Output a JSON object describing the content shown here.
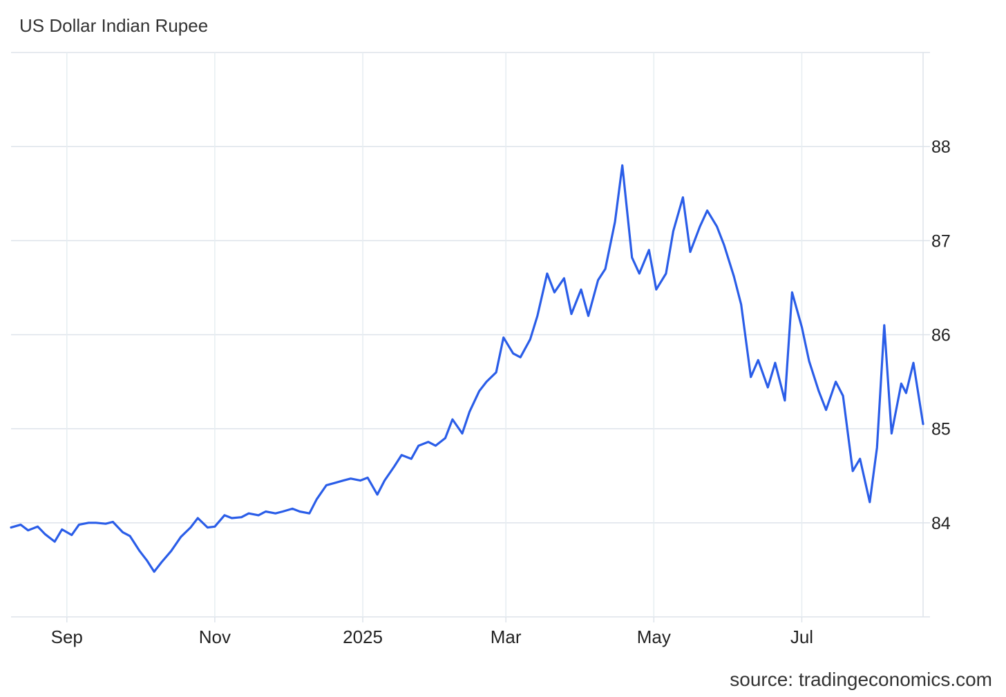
{
  "title": "US Dollar Indian Rupee",
  "source": "source: tradingeconomics.com",
  "chart_data": {
    "type": "line",
    "title": "US Dollar Indian Rupee",
    "xlabel": "",
    "ylabel": "",
    "x_ticks": [
      {
        "label": "Sep",
        "date": "2024-09-01"
      },
      {
        "label": "Nov",
        "date": "2024-11-01"
      },
      {
        "label": "2025",
        "date": "2025-01-01"
      },
      {
        "label": "Mar",
        "date": "2025-03-01"
      },
      {
        "label": "May",
        "date": "2025-05-01"
      },
      {
        "label": "Jul",
        "date": "2025-07-01"
      }
    ],
    "y_ticks": [
      84,
      85,
      86,
      87,
      88
    ],
    "xlim": [
      "2024-08-09",
      "2025-08-20"
    ],
    "ylim": [
      83,
      89
    ],
    "grid": true,
    "color": "#2a5de8",
    "series": [
      {
        "points": [
          [
            "2024-08-09",
            83.95
          ],
          [
            "2024-08-13",
            83.98
          ],
          [
            "2024-08-16",
            83.92
          ],
          [
            "2024-08-20",
            83.96
          ],
          [
            "2024-08-23",
            83.88
          ],
          [
            "2024-08-27",
            83.8
          ],
          [
            "2024-08-30",
            83.93
          ],
          [
            "2024-09-03",
            83.87
          ],
          [
            "2024-09-06",
            83.98
          ],
          [
            "2024-09-10",
            84.0
          ],
          [
            "2024-09-13",
            84.0
          ],
          [
            "2024-09-17",
            83.99
          ],
          [
            "2024-09-20",
            84.01
          ],
          [
            "2024-09-24",
            83.9
          ],
          [
            "2024-09-27",
            83.86
          ],
          [
            "2024-10-01",
            83.7
          ],
          [
            "2024-10-04",
            83.6
          ],
          [
            "2024-10-07",
            83.48
          ],
          [
            "2024-10-10",
            83.58
          ],
          [
            "2024-10-14",
            83.7
          ],
          [
            "2024-10-18",
            83.85
          ],
          [
            "2024-10-22",
            83.95
          ],
          [
            "2024-10-25",
            84.05
          ],
          [
            "2024-10-29",
            83.95
          ],
          [
            "2024-11-01",
            83.96
          ],
          [
            "2024-11-05",
            84.08
          ],
          [
            "2024-11-08",
            84.05
          ],
          [
            "2024-11-12",
            84.06
          ],
          [
            "2024-11-15",
            84.1
          ],
          [
            "2024-11-19",
            84.08
          ],
          [
            "2024-11-22",
            84.12
          ],
          [
            "2024-11-26",
            84.1
          ],
          [
            "2024-11-29",
            84.12
          ],
          [
            "2024-12-03",
            84.15
          ],
          [
            "2024-12-06",
            84.12
          ],
          [
            "2024-12-10",
            84.1
          ],
          [
            "2024-12-13",
            84.25
          ],
          [
            "2024-12-17",
            84.4
          ],
          [
            "2024-12-20",
            84.42
          ],
          [
            "2024-12-24",
            84.45
          ],
          [
            "2024-12-27",
            84.47
          ],
          [
            "2024-12-31",
            84.45
          ],
          [
            "2025-01-03",
            84.48
          ],
          [
            "2025-01-07",
            84.3
          ],
          [
            "2025-01-10",
            84.45
          ],
          [
            "2025-01-14",
            84.6
          ],
          [
            "2025-01-17",
            84.72
          ],
          [
            "2025-01-21",
            84.68
          ],
          [
            "2025-01-24",
            84.82
          ],
          [
            "2025-01-28",
            84.86
          ],
          [
            "2025-01-31",
            84.82
          ],
          [
            "2025-02-04",
            84.9
          ],
          [
            "2025-02-07",
            85.1
          ],
          [
            "2025-02-11",
            84.95
          ],
          [
            "2025-02-14",
            85.18
          ],
          [
            "2025-02-18",
            85.4
          ],
          [
            "2025-02-21",
            85.5
          ],
          [
            "2025-02-25",
            85.6
          ],
          [
            "2025-02-28",
            85.97
          ],
          [
            "2025-03-04",
            85.8
          ],
          [
            "2025-03-07",
            85.76
          ],
          [
            "2025-03-11",
            85.95
          ],
          [
            "2025-03-14",
            86.2
          ],
          [
            "2025-03-18",
            86.65
          ],
          [
            "2025-03-21",
            86.45
          ],
          [
            "2025-03-25",
            86.6
          ],
          [
            "2025-03-28",
            86.22
          ],
          [
            "2025-04-01",
            86.48
          ],
          [
            "2025-04-04",
            86.2
          ],
          [
            "2025-04-08",
            86.58
          ],
          [
            "2025-04-11",
            86.7
          ],
          [
            "2025-04-15",
            87.2
          ],
          [
            "2025-04-18",
            87.8
          ],
          [
            "2025-04-22",
            86.82
          ],
          [
            "2025-04-25",
            86.65
          ],
          [
            "2025-04-29",
            86.9
          ],
          [
            "2025-05-02",
            86.48
          ],
          [
            "2025-05-06",
            86.65
          ],
          [
            "2025-05-09",
            87.1
          ],
          [
            "2025-05-13",
            87.46
          ],
          [
            "2025-05-16",
            86.88
          ],
          [
            "2025-05-20",
            87.15
          ],
          [
            "2025-05-23",
            87.32
          ],
          [
            "2025-05-27",
            87.15
          ],
          [
            "2025-05-30",
            86.95
          ],
          [
            "2025-06-03",
            86.62
          ],
          [
            "2025-06-06",
            86.32
          ],
          [
            "2025-06-10",
            85.55
          ],
          [
            "2025-06-13",
            85.73
          ],
          [
            "2025-06-17",
            85.44
          ],
          [
            "2025-06-20",
            85.7
          ],
          [
            "2025-06-24",
            85.3
          ],
          [
            "2025-06-27",
            86.45
          ],
          [
            "2025-07-01",
            86.08
          ],
          [
            "2025-07-04",
            85.72
          ],
          [
            "2025-07-08",
            85.4
          ],
          [
            "2025-07-11",
            85.2
          ],
          [
            "2025-07-15",
            85.5
          ],
          [
            "2025-07-18",
            85.35
          ],
          [
            "2025-07-22",
            84.55
          ],
          [
            "2025-07-25",
            84.68
          ],
          [
            "2025-07-29",
            84.22
          ],
          [
            "2025-08-01",
            84.8
          ],
          [
            "2025-08-04",
            86.1
          ],
          [
            "2025-08-07",
            84.95
          ],
          [
            "2025-08-11",
            85.48
          ],
          [
            "2025-08-13",
            85.38
          ],
          [
            "2025-08-16",
            85.7
          ],
          [
            "2025-08-20",
            85.05
          ]
        ]
      }
    ]
  }
}
